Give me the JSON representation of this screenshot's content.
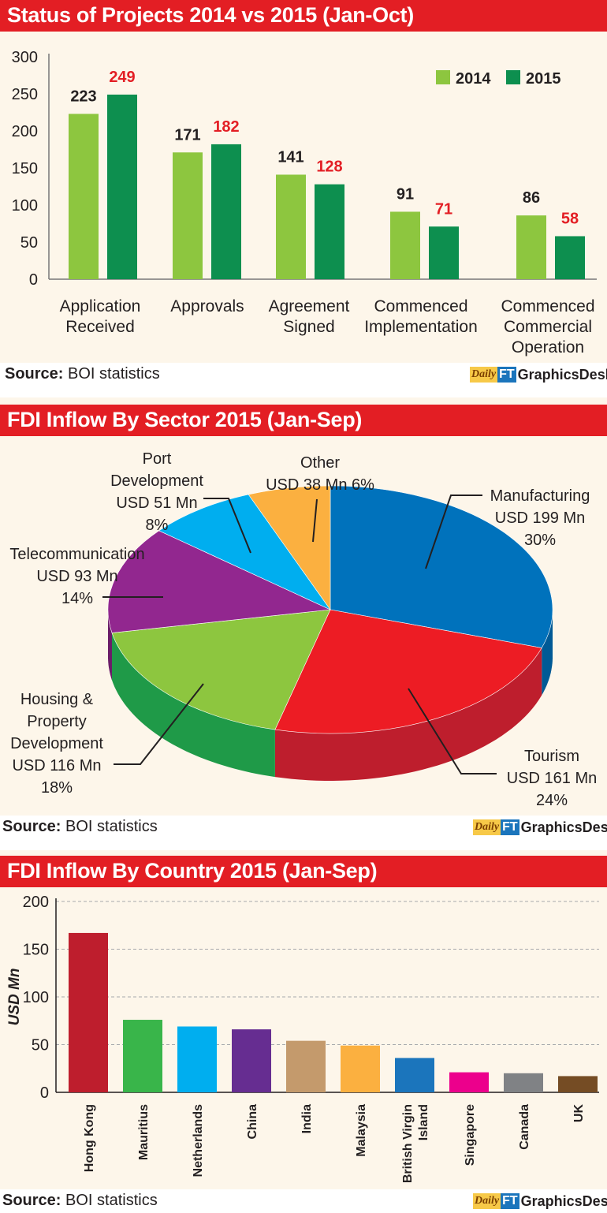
{
  "brand": {
    "daily": "Daily",
    "ft": "FT",
    "desk": "GraphicsDesk"
  },
  "source": {
    "label": "Source:",
    "text": "BOI statistics"
  },
  "chart_data": [
    {
      "type": "bar",
      "title": "Status of Projects 2014 vs 2015 (Jan-Oct)",
      "categories": [
        [
          "Application",
          "Received"
        ],
        [
          "Approvals"
        ],
        [
          "Agreement",
          "Signed"
        ],
        [
          "Commenced",
          "Implementation"
        ],
        [
          "Commenced",
          "Commercial",
          "Operation"
        ]
      ],
      "series": [
        {
          "name": "2014",
          "values": [
            223,
            171,
            141,
            91,
            86
          ],
          "color": "#8dc63f",
          "label_color": "#231f20"
        },
        {
          "name": "2015",
          "values": [
            249,
            182,
            128,
            71,
            58
          ],
          "color": "#0d8f4f",
          "label_color": "#e31e24"
        }
      ],
      "ylim": [
        0,
        300
      ],
      "yticks": [
        0,
        50,
        100,
        150,
        200,
        250,
        300
      ],
      "legend": "top-right",
      "grid": false
    },
    {
      "type": "pie",
      "title": "FDI Inflow By Sector 2015 (Jan-Sep)",
      "slices": [
        {
          "name": "Manufacturing",
          "amount": "USD 199 Mn",
          "percent": 30,
          "color": "#0072bc",
          "side": "#005a96"
        },
        {
          "name": "Tourism",
          "amount": "USD 161 Mn",
          "percent": 24,
          "color": "#ed1c24",
          "side": "#be1e2d"
        },
        {
          "name": "Housing & Property Development",
          "amount": "USD 116 Mn",
          "percent": 18,
          "color": "#8dc63f",
          "side": "#1f9a48"
        },
        {
          "name": "Telecommunication",
          "amount": "USD 93 Mn",
          "percent": 14,
          "color": "#92278f",
          "side": "#6b1d69"
        },
        {
          "name": "Port Development",
          "amount": "USD 51 Mn",
          "percent": 8,
          "color": "#00aeef",
          "side": "#0088bb"
        },
        {
          "name": "Other",
          "amount": "USD 38 Mn",
          "percent": 6,
          "color": "#fbb040",
          "side": "#d68f20"
        }
      ],
      "labels": {
        "manufacturing": [
          "Manufacturing",
          "USD 199 Mn",
          "30%"
        ],
        "tourism": [
          "Tourism",
          "USD 161 Mn",
          "24%"
        ],
        "housing": [
          "Housing &",
          "Property",
          "Development",
          "USD 116 Mn",
          "18%"
        ],
        "telecom": [
          "Telecommunication",
          "USD 93 Mn",
          "14%"
        ],
        "port": [
          "Port",
          "Development",
          "USD 51 Mn",
          "8%"
        ],
        "other": [
          "Other",
          "USD 38 Mn 6%"
        ]
      }
    },
    {
      "type": "bar",
      "title": "FDI Inflow By Country 2015 (Jan-Sep)",
      "ylabel": "USD Mn",
      "categories": [
        [
          "Hong Kong"
        ],
        [
          "Mauritius"
        ],
        [
          "Netherlands"
        ],
        [
          "China"
        ],
        [
          "India"
        ],
        [
          "Malaysia"
        ],
        [
          "British Virgin",
          "Island"
        ],
        [
          "Singapore"
        ],
        [
          "Canada"
        ],
        [
          "UK"
        ]
      ],
      "values": [
        167,
        76,
        69,
        66,
        54,
        49,
        36,
        21,
        20,
        17
      ],
      "colors": [
        "#be1e2d",
        "#39b54a",
        "#00aeef",
        "#662d91",
        "#c49a6c",
        "#fbb040",
        "#1b75bc",
        "#ec008c",
        "#808285",
        "#754c24"
      ],
      "ylim": [
        0,
        200
      ],
      "yticks": [
        0,
        50,
        100,
        150,
        200
      ],
      "grid": true
    }
  ]
}
